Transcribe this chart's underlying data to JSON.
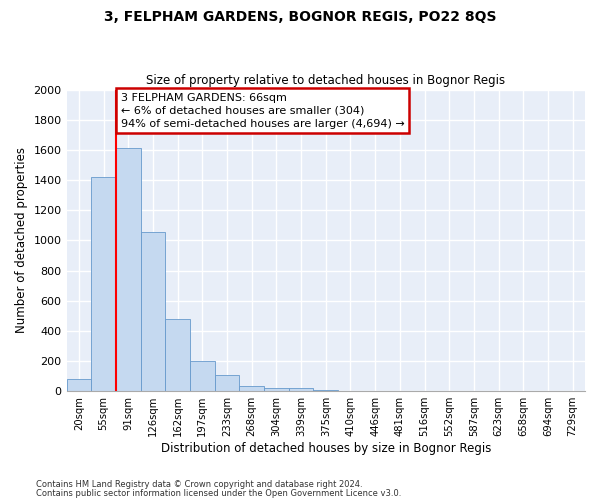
{
  "title": "3, FELPHAM GARDENS, BOGNOR REGIS, PO22 8QS",
  "subtitle": "Size of property relative to detached houses in Bognor Regis",
  "xlabel": "Distribution of detached houses by size in Bognor Regis",
  "ylabel": "Number of detached properties",
  "categories": [
    "20sqm",
    "55sqm",
    "91sqm",
    "126sqm",
    "162sqm",
    "197sqm",
    "233sqm",
    "268sqm",
    "304sqm",
    "339sqm",
    "375sqm",
    "410sqm",
    "446sqm",
    "481sqm",
    "516sqm",
    "552sqm",
    "587sqm",
    "623sqm",
    "658sqm",
    "694sqm",
    "729sqm"
  ],
  "values": [
    80,
    1420,
    1610,
    1055,
    480,
    200,
    105,
    35,
    20,
    20,
    10,
    0,
    0,
    0,
    0,
    0,
    0,
    0,
    0,
    0,
    0
  ],
  "bar_color": "#c5d9f0",
  "bar_edge_color": "#6699cc",
  "background_color": "#e8eef8",
  "grid_color": "#ffffff",
  "annotation_text": "3 FELPHAM GARDENS: 66sqm\n← 6% of detached houses are smaller (304)\n94% of semi-detached houses are larger (4,694) →",
  "annotation_box_color": "#ffffff",
  "annotation_box_edge": "#cc0000",
  "ylim": [
    0,
    2000
  ],
  "yticks": [
    0,
    200,
    400,
    600,
    800,
    1000,
    1200,
    1400,
    1600,
    1800,
    2000
  ],
  "footnote1": "Contains HM Land Registry data © Crown copyright and database right 2024.",
  "footnote2": "Contains public sector information licensed under the Open Government Licence v3.0."
}
